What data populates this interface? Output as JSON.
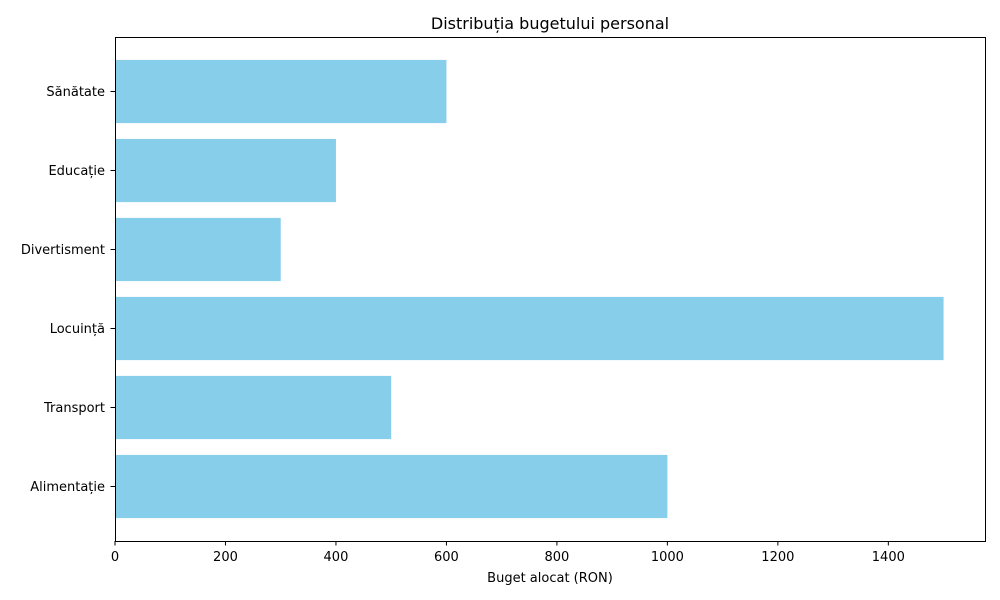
{
  "chart_data": {
    "type": "bar",
    "orientation": "horizontal",
    "title": "Distribuția bugetului personal",
    "xlabel": "Buget alocat (RON)",
    "ylabel": "",
    "categories": [
      "Alimentație",
      "Transport",
      "Locuință",
      "Divertisment",
      "Educație",
      "Sănătate"
    ],
    "values": [
      1000,
      500,
      1500,
      300,
      400,
      600
    ],
    "xlim": [
      0,
      1575
    ],
    "xticks": [
      0,
      200,
      400,
      600,
      800,
      1000,
      1200,
      1400
    ],
    "bar_color": "#87ceeb",
    "grid": false
  }
}
